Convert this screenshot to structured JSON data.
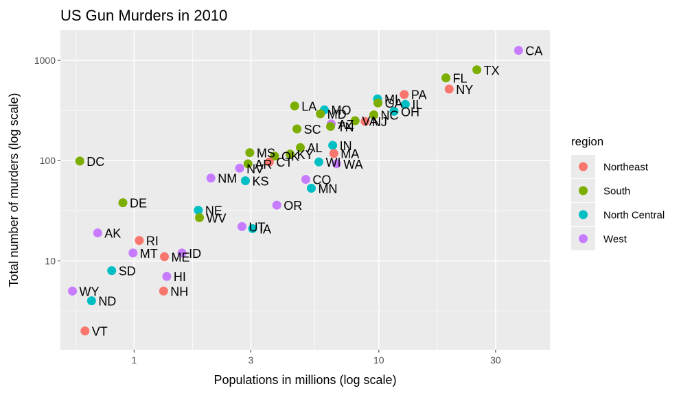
{
  "chart_data": {
    "type": "scatter",
    "title": "US Gun Murders in 2010",
    "xlabel": "Populations in millions (log scale)",
    "ylabel": "Total number of murders (log scale)",
    "x_scale": "log10",
    "y_scale": "log10",
    "xlim": [
      0.5,
      50
    ],
    "ylim": [
      1.3,
      2000
    ],
    "x_ticks": [
      1,
      3,
      10,
      30
    ],
    "x_tick_labels": [
      "1",
      "3",
      "10",
      "30"
    ],
    "y_ticks": [
      10,
      100,
      1000
    ],
    "y_tick_labels": [
      "10",
      "100",
      "1000"
    ],
    "grid": true,
    "legend": {
      "title": "region",
      "placement": "right",
      "entries": [
        {
          "name": "Northeast",
          "color": "#F8766D"
        },
        {
          "name": "South",
          "color": "#7CAE00"
        },
        {
          "name": "North Central",
          "color": "#00BFC4"
        },
        {
          "name": "West",
          "color": "#C77CFF"
        }
      ]
    },
    "points": [
      {
        "label": "CA",
        "x": 37.25,
        "y": 1257,
        "region": "West"
      },
      {
        "label": "TX",
        "x": 25.15,
        "y": 805,
        "region": "South"
      },
      {
        "label": "FL",
        "x": 18.8,
        "y": 669,
        "region": "South"
      },
      {
        "label": "NY",
        "x": 19.38,
        "y": 517,
        "region": "Northeast"
      },
      {
        "label": "PA",
        "x": 12.7,
        "y": 457,
        "region": "Northeast"
      },
      {
        "label": "MI",
        "x": 9.88,
        "y": 413,
        "region": "North Central"
      },
      {
        "label": "GA",
        "x": 9.92,
        "y": 376,
        "region": "South"
      },
      {
        "label": "IL",
        "x": 12.83,
        "y": 364,
        "region": "North Central"
      },
      {
        "label": "LA",
        "x": 4.53,
        "y": 351,
        "region": "South"
      },
      {
        "label": "MO",
        "x": 5.99,
        "y": 321,
        "region": "North Central"
      },
      {
        "label": "OH",
        "x": 11.54,
        "y": 310,
        "region": "North Central"
      },
      {
        "label": "MD",
        "x": 5.77,
        "y": 293,
        "region": "South"
      },
      {
        "label": "NC",
        "x": 9.54,
        "y": 286,
        "region": "South"
      },
      {
        "label": "NJ",
        "x": 8.79,
        "y": 246,
        "region": "Northeast"
      },
      {
        "label": "VA",
        "x": 8.0,
        "y": 250,
        "region": "South"
      },
      {
        "label": "AZ",
        "x": 6.39,
        "y": 232,
        "region": "West"
      },
      {
        "label": "TN",
        "x": 6.35,
        "y": 219,
        "region": "South"
      },
      {
        "label": "SC",
        "x": 4.63,
        "y": 207,
        "region": "South"
      },
      {
        "label": "IN",
        "x": 6.48,
        "y": 142,
        "region": "North Central"
      },
      {
        "label": "AL",
        "x": 4.78,
        "y": 135,
        "region": "South"
      },
      {
        "label": "MA",
        "x": 6.55,
        "y": 118,
        "region": "Northeast"
      },
      {
        "label": "MS",
        "x": 2.97,
        "y": 120,
        "region": "South"
      },
      {
        "label": "KY",
        "x": 4.34,
        "y": 116,
        "region": "South"
      },
      {
        "label": "OK",
        "x": 3.75,
        "y": 111,
        "region": "South"
      },
      {
        "label": "CT",
        "x": 3.57,
        "y": 97,
        "region": "Northeast"
      },
      {
        "label": "AR",
        "x": 2.92,
        "y": 93,
        "region": "South"
      },
      {
        "label": "WI",
        "x": 5.69,
        "y": 97,
        "region": "North Central"
      },
      {
        "label": "WA",
        "x": 6.72,
        "y": 93,
        "region": "West"
      },
      {
        "label": "DC",
        "x": 0.6,
        "y": 99,
        "region": "South"
      },
      {
        "label": "NV",
        "x": 2.7,
        "y": 84,
        "region": "West"
      },
      {
        "label": "NM",
        "x": 2.06,
        "y": 67,
        "region": "West"
      },
      {
        "label": "KS",
        "x": 2.85,
        "y": 63,
        "region": "North Central"
      },
      {
        "label": "CO",
        "x": 5.03,
        "y": 65,
        "region": "West"
      },
      {
        "label": "MN",
        "x": 5.3,
        "y": 53,
        "region": "North Central"
      },
      {
        "label": "DE",
        "x": 0.9,
        "y": 38,
        "region": "South"
      },
      {
        "label": "OR",
        "x": 3.83,
        "y": 36,
        "region": "West"
      },
      {
        "label": "NE",
        "x": 1.83,
        "y": 32,
        "region": "North Central"
      },
      {
        "label": "WV",
        "x": 1.85,
        "y": 27,
        "region": "South"
      },
      {
        "label": "UT",
        "x": 2.76,
        "y": 22,
        "region": "West"
      },
      {
        "label": "IA",
        "x": 3.05,
        "y": 21,
        "region": "North Central"
      },
      {
        "label": "AK",
        "x": 0.71,
        "y": 19,
        "region": "West"
      },
      {
        "label": "RI",
        "x": 1.05,
        "y": 16,
        "region": "Northeast"
      },
      {
        "label": "MT",
        "x": 0.99,
        "y": 12,
        "region": "West"
      },
      {
        "label": "ID",
        "x": 1.57,
        "y": 12,
        "region": "West"
      },
      {
        "label": "ME",
        "x": 1.33,
        "y": 11,
        "region": "Northeast"
      },
      {
        "label": "SD",
        "x": 0.81,
        "y": 8,
        "region": "North Central"
      },
      {
        "label": "HI",
        "x": 1.36,
        "y": 7,
        "region": "West"
      },
      {
        "label": "NH",
        "x": 1.32,
        "y": 5,
        "region": "Northeast"
      },
      {
        "label": "WY",
        "x": 0.56,
        "y": 5,
        "region": "West"
      },
      {
        "label": "ND",
        "x": 0.67,
        "y": 4,
        "region": "North Central"
      },
      {
        "label": "VT",
        "x": 0.63,
        "y": 2,
        "region": "Northeast"
      }
    ]
  }
}
